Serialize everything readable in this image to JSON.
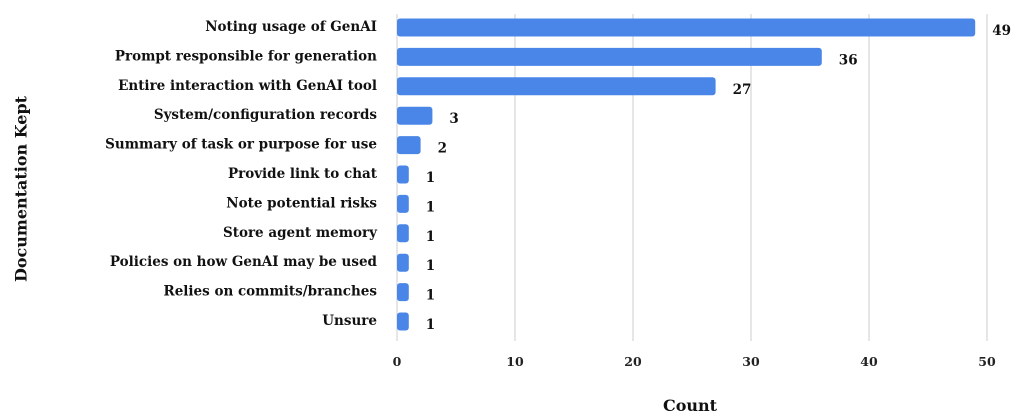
{
  "chart_data": {
    "type": "bar",
    "orientation": "horizontal",
    "categories": [
      "Noting usage of GenAI",
      "Prompt responsible for generation",
      "Entire interaction with GenAI tool",
      "System/configuration records",
      "Summary of task or purpose for use",
      "Provide link to chat",
      "Note potential risks",
      "Store agent memory",
      "Policies on how GenAI may be used",
      "Relies on commits/branches",
      "Unsure"
    ],
    "values": [
      49,
      36,
      27,
      3,
      2,
      1,
      1,
      1,
      1,
      1,
      1
    ],
    "data_labels": [
      "49",
      "36",
      "27",
      "3",
      "2",
      "1",
      "1",
      "1",
      "1",
      "1",
      "1"
    ],
    "xlabel": "Count",
    "ylabel": "Documentation Kept",
    "xlim": [
      0,
      50
    ],
    "xticks": [
      0,
      10,
      20,
      30,
      40,
      50
    ],
    "xtick_labels": [
      "0",
      "10",
      "20",
      "30",
      "40",
      "50"
    ],
    "grid": "vertical",
    "legend": "none",
    "colors": {
      "bar": "#4a86e8",
      "grid": "#cccccc",
      "text": "#111111"
    }
  }
}
